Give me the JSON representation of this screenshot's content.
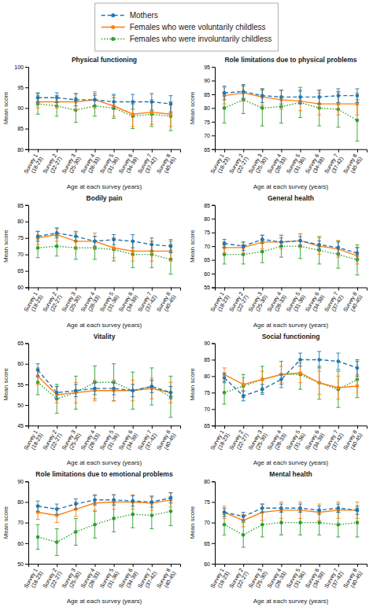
{
  "chart_data": [
    {
      "type": "line",
      "title": "Physical functioning",
      "legend": "top",
      "categories": [
        "Survey 1\n(18-23)",
        "Survey 2\n(22-27)",
        "Survey 3\n(25-30)",
        "Survey 4\n(28-33)",
        "Survey 5\n(31-36)",
        "Survey 6\n(34-39)",
        "Survey 7\n(37-42)",
        "Survey 8\n(40-45)"
      ],
      "x_label": "Age at each survey (years)",
      "y_label": "Mean score",
      "ylim": [
        80,
        100
      ],
      "yticks": [
        80,
        85,
        90,
        95,
        100
      ],
      "series": [
        {
          "name": "Mothers",
          "line_style": "dashed",
          "marker": "circle",
          "values": [
            92.5,
            92.5,
            92.0,
            92.0,
            91.5,
            91.5,
            91.5,
            91.0
          ],
          "errors": [
            1.2,
            1.2,
            1.5,
            1.5,
            1.8,
            1.8,
            2.0,
            2.0
          ]
        },
        {
          "name": "Females who were voluntarily childless",
          "line_style": "solid",
          "marker": "circle",
          "values": [
            91.5,
            91.5,
            91.5,
            92.0,
            90.5,
            88.5,
            89.0,
            88.5
          ],
          "errors": [
            1.5,
            1.5,
            2.0,
            2.0,
            2.5,
            3.0,
            3.0,
            3.0
          ]
        },
        {
          "name": "Females who were involuntarily childless",
          "line_style": "dotted",
          "marker": "circle",
          "values": [
            91.0,
            90.5,
            89.5,
            90.5,
            90.0,
            88.0,
            88.5,
            88.0
          ],
          "errors": [
            2.5,
            2.5,
            3.0,
            2.5,
            2.5,
            3.0,
            3.0,
            3.5
          ]
        }
      ]
    },
    {
      "type": "line",
      "title": "Role limitations due to physical problems",
      "categories": [
        "Survey 1\n(18-23)",
        "Survey 2\n(22-27)",
        "Survey 3\n(25-30)",
        "Survey 4\n(28-33)",
        "Survey 5\n(31-36)",
        "Survey 6\n(34-39)",
        "Survey 7\n(37-42)",
        "Survey 8\n(40-45)"
      ],
      "x_label": "Age at each survey (years)",
      "y_label": "Mean score",
      "ylim": [
        65,
        95
      ],
      "yticks": [
        65,
        70,
        75,
        80,
        85,
        90,
        95
      ],
      "series": [
        {
          "name": "Mothers",
          "line_style": "dashed",
          "marker": "circle",
          "values": [
            85.5,
            86.0,
            84.5,
            84.0,
            84.0,
            84.0,
            84.5,
            84.5
          ],
          "errors": [
            2.5,
            2.5,
            2.5,
            2.5,
            2.5,
            2.5,
            2.5,
            2.5
          ]
        },
        {
          "name": "Females who were voluntarily childless",
          "line_style": "solid",
          "marker": "circle",
          "values": [
            84.5,
            85.5,
            84.0,
            83.0,
            82.5,
            81.5,
            81.5,
            81.5
          ],
          "errors": [
            3.0,
            3.0,
            3.0,
            3.5,
            3.5,
            4.0,
            4.0,
            4.0
          ]
        },
        {
          "name": "Females who were involuntarily childless",
          "line_style": "dotted",
          "marker": "circle",
          "values": [
            80.0,
            83.0,
            80.0,
            80.5,
            82.0,
            80.0,
            79.5,
            75.5
          ],
          "errors": [
            5.5,
            5.0,
            6.5,
            6.0,
            5.5,
            6.5,
            6.5,
            7.5
          ]
        }
      ]
    },
    {
      "type": "line",
      "title": "Bodily pain",
      "categories": [
        "Survey 1\n(18-23)",
        "Survey 2\n(22-27)",
        "Survey 3\n(25-30)",
        "Survey 4\n(28-33)",
        "Survey 5\n(31-36)",
        "Survey 6\n(34-39)",
        "Survey 7\n(37-42)",
        "Survey 8\n(40-45)"
      ],
      "x_label": "Age at each survey (years)",
      "y_label": "Mean score",
      "ylim": [
        60,
        85
      ],
      "yticks": [
        60,
        65,
        70,
        75,
        80,
        85
      ],
      "series": [
        {
          "name": "Mothers",
          "line_style": "dashed",
          "marker": "circle",
          "values": [
            75.5,
            76.5,
            75.5,
            74.0,
            74.5,
            74.0,
            73.0,
            72.5
          ],
          "errors": [
            1.5,
            1.5,
            1.5,
            1.5,
            1.5,
            2.0,
            2.0,
            2.0
          ]
        },
        {
          "name": "Females who were voluntarily childless",
          "line_style": "solid",
          "marker": "circle",
          "values": [
            75.0,
            76.0,
            74.0,
            74.0,
            72.0,
            71.0,
            71.0,
            71.0
          ],
          "errors": [
            2.0,
            2.0,
            2.5,
            2.5,
            3.0,
            3.0,
            3.0,
            3.0
          ]
        },
        {
          "name": "Females who were involuntarily childless",
          "line_style": "dotted",
          "marker": "circle",
          "values": [
            72.0,
            72.5,
            72.0,
            72.0,
            71.5,
            70.0,
            70.0,
            68.5
          ],
          "errors": [
            3.0,
            3.0,
            3.5,
            3.5,
            3.5,
            4.0,
            4.0,
            4.5
          ]
        }
      ]
    },
    {
      "type": "line",
      "title": "General health",
      "categories": [
        "Survey 1\n(18-23)",
        "Survey 2\n(22-27)",
        "Survey 3\n(25-30)",
        "Survey 4\n(28-33)",
        "Survey 5\n(31-36)",
        "Survey 6\n(34-39)",
        "Survey 7\n(37-42)",
        "Survey 8\n(40-45)"
      ],
      "x_label": "Age at each survey (years)",
      "y_label": "Mean score",
      "ylim": [
        55,
        85
      ],
      "yticks": [
        55,
        60,
        65,
        70,
        75,
        80,
        85
      ],
      "series": [
        {
          "name": "Mothers",
          "line_style": "dashed",
          "marker": "circle",
          "values": [
            71.0,
            70.0,
            72.5,
            71.5,
            72.0,
            70.5,
            69.5,
            67.5
          ],
          "errors": [
            1.5,
            1.5,
            1.5,
            1.5,
            1.5,
            1.5,
            2.0,
            2.0
          ]
        },
        {
          "name": "Females who were voluntarily childless",
          "line_style": "solid",
          "marker": "circle",
          "values": [
            69.5,
            69.5,
            71.5,
            71.5,
            72.0,
            70.0,
            69.0,
            66.5
          ],
          "errors": [
            2.0,
            2.0,
            2.5,
            2.5,
            2.5,
            3.0,
            3.0,
            3.0
          ]
        },
        {
          "name": "Females who were involuntarily childless",
          "line_style": "dotted",
          "marker": "circle",
          "values": [
            67.0,
            67.0,
            68.0,
            70.0,
            70.0,
            68.5,
            67.0,
            65.0
          ],
          "errors": [
            3.5,
            3.5,
            4.0,
            4.0,
            4.5,
            5.0,
            5.0,
            5.5
          ]
        }
      ]
    },
    {
      "type": "line",
      "title": "Vitality",
      "categories": [
        "Survey 1\n(18-23)",
        "Survey 2\n(22-27)",
        "Survey 3\n(25-30)",
        "Survey 4\n(28-33)",
        "Survey 5\n(31-36)",
        "Survey 6\n(34-39)",
        "Survey 7\n(37-42)",
        "Survey 8\n(40-45)"
      ],
      "x_label": "Age at each survey (years)",
      "y_label": "Mean score",
      "ylim": [
        45,
        65
      ],
      "yticks": [
        45,
        50,
        55,
        60,
        65
      ],
      "series": [
        {
          "name": "Mothers",
          "line_style": "dashed",
          "marker": "circle",
          "values": [
            58.5,
            53.0,
            53.5,
            54.0,
            54.0,
            53.5,
            54.5,
            53.0
          ],
          "errors": [
            1.5,
            1.5,
            1.5,
            1.5,
            1.5,
            1.5,
            1.5,
            1.5
          ]
        },
        {
          "name": "Females who were voluntarily childless",
          "line_style": "solid",
          "marker": "circle",
          "values": [
            57.0,
            52.5,
            53.0,
            53.5,
            53.5,
            53.5,
            54.0,
            53.0
          ],
          "errors": [
            2.0,
            2.0,
            2.5,
            2.5,
            2.5,
            2.5,
            2.5,
            2.5
          ]
        },
        {
          "name": "Females who were involuntarily childless",
          "line_style": "dotted",
          "marker": "circle",
          "values": [
            55.5,
            51.5,
            53.0,
            55.5,
            55.5,
            53.5,
            54.5,
            52.0
          ],
          "errors": [
            3.0,
            3.5,
            4.0,
            4.0,
            4.5,
            4.5,
            4.5,
            5.0
          ]
        }
      ]
    },
    {
      "type": "line",
      "title": "Social functioning",
      "categories": [
        "Survey 1\n(18-23)",
        "Survey 2\n(22-27)",
        "Survey 3\n(25-30)",
        "Survey 4\n(28-33)",
        "Survey 5\n(31-36)",
        "Survey 6\n(34-39)",
        "Survey 7\n(37-42)",
        "Survey 8\n(40-45)"
      ],
      "x_label": "Age at each survey (years)",
      "y_label": "Mean score",
      "ylim": [
        65,
        90
      ],
      "yticks": [
        65,
        70,
        75,
        80,
        85,
        90
      ],
      "series": [
        {
          "name": "Mothers",
          "line_style": "dashed",
          "marker": "circle",
          "values": [
            79.5,
            74.0,
            76.0,
            79.0,
            85.0,
            85.0,
            84.5,
            82.5
          ],
          "errors": [
            1.5,
            1.5,
            1.5,
            1.5,
            2.0,
            2.5,
            2.5,
            2.5
          ]
        },
        {
          "name": "Females who were voluntarily childless",
          "line_style": "solid",
          "marker": "circle",
          "values": [
            80.5,
            77.5,
            79.0,
            80.5,
            81.0,
            78.0,
            76.5,
            77.0
          ],
          "errors": [
            2.0,
            2.0,
            2.5,
            2.5,
            3.0,
            3.5,
            3.5,
            3.5
          ]
        },
        {
          "name": "Females who were involuntarily childless",
          "line_style": "dotted",
          "marker": "circle",
          "values": [
            75.0,
            77.0,
            79.0,
            80.5,
            80.5,
            78.0,
            76.0,
            79.0
          ],
          "errors": [
            3.5,
            3.5,
            4.0,
            4.0,
            4.5,
            5.0,
            5.5,
            5.5
          ]
        }
      ]
    },
    {
      "type": "line",
      "title": "Role limitations due to emotional problems",
      "categories": [
        "Survey 1\n(18-23)",
        "Survey 2\n(22-27)",
        "Survey 3\n(25-30)",
        "Survey 4\n(28-33)",
        "Survey 5\n(31-36)",
        "Survey 6\n(34-39)",
        "Survey 7\n(37-42)",
        "Survey 8\n(40-45)"
      ],
      "x_label": "Age at each survey (years)",
      "y_label": "Mean score",
      "ylim": [
        50,
        90
      ],
      "yticks": [
        50,
        60,
        70,
        80,
        90
      ],
      "series": [
        {
          "name": "Mothers",
          "line_style": "dashed",
          "marker": "circle",
          "values": [
            78.0,
            76.5,
            79.0,
            81.0,
            81.0,
            80.5,
            80.0,
            82.0
          ],
          "errors": [
            2.5,
            2.5,
            2.5,
            2.5,
            2.5,
            2.5,
            2.5,
            2.5
          ]
        },
        {
          "name": "Females who were voluntarily childless",
          "line_style": "solid",
          "marker": "circle",
          "values": [
            75.0,
            73.5,
            76.5,
            79.5,
            80.0,
            80.0,
            79.5,
            81.0
          ],
          "errors": [
            3.5,
            3.5,
            3.5,
            3.5,
            3.5,
            3.5,
            3.5,
            3.5
          ]
        },
        {
          "name": "Females who were involuntarily childless",
          "line_style": "dotted",
          "marker": "circle",
          "values": [
            63.0,
            60.5,
            65.5,
            69.0,
            72.0,
            74.0,
            73.5,
            75.5
          ],
          "errors": [
            6.0,
            6.5,
            6.5,
            6.5,
            6.5,
            6.5,
            6.5,
            7.0
          ]
        }
      ]
    },
    {
      "type": "line",
      "title": "Mental health",
      "categories": [
        "Survey 1\n(18-23)",
        "Survey 2\n(22-27)",
        "Survey 3\n(25-30)",
        "Survey 4\n(28-33)",
        "Survey 5\n(31-36)",
        "Survey 6\n(34-39)",
        "Survey 7\n(37-42)",
        "Survey 8\n(40-45)"
      ],
      "x_label": "Age at each survey (years)",
      "y_label": "Mean score",
      "ylim": [
        60,
        80
      ],
      "yticks": [
        60,
        65,
        70,
        75,
        80
      ],
      "series": [
        {
          "name": "Mothers",
          "line_style": "dashed",
          "marker": "circle",
          "values": [
            72.5,
            71.5,
            73.5,
            73.5,
            73.5,
            73.0,
            73.5,
            73.0
          ],
          "errors": [
            1.0,
            1.0,
            1.0,
            1.0,
            1.0,
            1.0,
            1.0,
            1.0
          ]
        },
        {
          "name": "Females who were voluntarily childless",
          "line_style": "solid",
          "marker": "circle",
          "values": [
            72.5,
            70.5,
            72.5,
            73.0,
            73.0,
            72.5,
            73.0,
            73.0
          ],
          "errors": [
            1.5,
            1.5,
            2.0,
            2.0,
            2.0,
            2.0,
            2.0,
            2.0
          ]
        },
        {
          "name": "Females who were involuntarily childless",
          "line_style": "dotted",
          "marker": "circle",
          "values": [
            69.5,
            67.0,
            69.5,
            70.0,
            70.0,
            70.0,
            69.5,
            70.0
          ],
          "errors": [
            2.5,
            3.0,
            3.0,
            3.0,
            3.0,
            3.0,
            3.0,
            3.5
          ]
        }
      ]
    }
  ]
}
